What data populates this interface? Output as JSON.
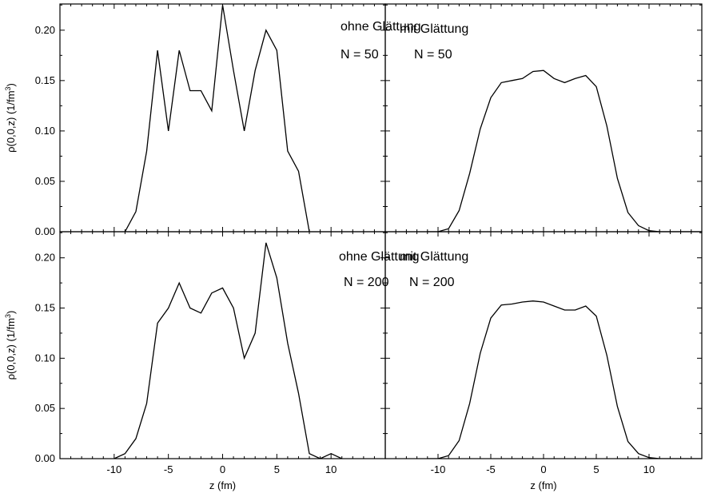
{
  "chart_data": [
    {
      "type": "line",
      "panel": "top-left",
      "annotations": [
        "ohne Glättung",
        "N = 50"
      ],
      "ylabel": "ρ(0,0,z) (1/fm3)",
      "xlabel": "",
      "xlim": [
        -15,
        15
      ],
      "ylim": [
        0,
        0.225
      ],
      "yticks": [
        "0.00",
        "0.05",
        "0.10",
        "0.15",
        "0.20"
      ],
      "x": [
        -9,
        -8,
        -7,
        -6,
        -5,
        -4,
        -3,
        -2,
        -1,
        0,
        1,
        2,
        3,
        4,
        5,
        6,
        7,
        8
      ],
      "values": [
        0,
        0.02,
        0.08,
        0.18,
        0.1,
        0.18,
        0.14,
        0.14,
        0.12,
        0.225,
        0.16,
        0.1,
        0.16,
        0.2,
        0.18,
        0.08,
        0.06,
        0
      ]
    },
    {
      "type": "line",
      "panel": "top-right",
      "annotations": [
        "mit Glättung",
        "N = 50"
      ],
      "ylabel": "",
      "xlabel": "",
      "xlim": [
        -15,
        15
      ],
      "ylim": [
        0,
        0.225
      ],
      "x": [
        -11,
        -10,
        -9,
        -8,
        -7,
        -6,
        -5,
        -4,
        -3,
        -2,
        -1,
        0,
        1,
        2,
        3,
        4,
        5,
        6,
        7,
        8,
        9,
        10,
        11,
        12,
        13,
        14,
        15
      ],
      "values": [
        0,
        0,
        0.003,
        0.021,
        0.058,
        0.102,
        0.133,
        0.148,
        0.15,
        0.152,
        0.159,
        0.16,
        0.152,
        0.148,
        0.152,
        0.155,
        0.144,
        0.105,
        0.053,
        0.019,
        0.006,
        0.001,
        0,
        0,
        0,
        0,
        0
      ]
    },
    {
      "type": "line",
      "panel": "bottom-left",
      "annotations": [
        "ohne Glättung",
        "N = 200"
      ],
      "ylabel": "ρ(0,0,z) (1/fm3)",
      "xlabel": "z (fm)",
      "xlim": [
        -15,
        15
      ],
      "ylim": [
        0,
        0.225
      ],
      "yticks": [
        "0.00",
        "0.05",
        "0.10",
        "0.15",
        "0.20"
      ],
      "xticks": [
        "-10",
        "-5",
        "0",
        "5",
        "10"
      ],
      "x": [
        -10,
        -9,
        -8,
        -7,
        -6,
        -5,
        -4,
        -3,
        -2,
        -1,
        0,
        1,
        2,
        3,
        4,
        5,
        6,
        7,
        8,
        9,
        10,
        11
      ],
      "values": [
        0,
        0.005,
        0.02,
        0.055,
        0.135,
        0.15,
        0.175,
        0.15,
        0.145,
        0.165,
        0.17,
        0.15,
        0.1,
        0.125,
        0.215,
        0.18,
        0.115,
        0.065,
        0.005,
        0,
        0.005,
        0
      ]
    },
    {
      "type": "line",
      "panel": "bottom-right",
      "annotations": [
        "mit Glättung",
        "N = 200"
      ],
      "ylabel": "",
      "xlabel": "z (fm)",
      "xlim": [
        -15,
        15
      ],
      "ylim": [
        0,
        0.225
      ],
      "xticks": [
        "-10",
        "-5",
        "0",
        "5",
        "10"
      ],
      "x": [
        -11,
        -10,
        -9,
        -8,
        -7,
        -6,
        -5,
        -4,
        -3,
        -2,
        -1,
        0,
        1,
        2,
        3,
        4,
        5,
        6,
        7,
        8,
        9,
        10,
        11,
        12,
        13,
        14,
        15
      ],
      "values": [
        0,
        0,
        0.003,
        0.018,
        0.055,
        0.105,
        0.14,
        0.153,
        0.154,
        0.156,
        0.157,
        0.156,
        0.152,
        0.148,
        0.148,
        0.152,
        0.142,
        0.103,
        0.052,
        0.017,
        0.005,
        0.001,
        0,
        0,
        0,
        0,
        0
      ]
    }
  ]
}
